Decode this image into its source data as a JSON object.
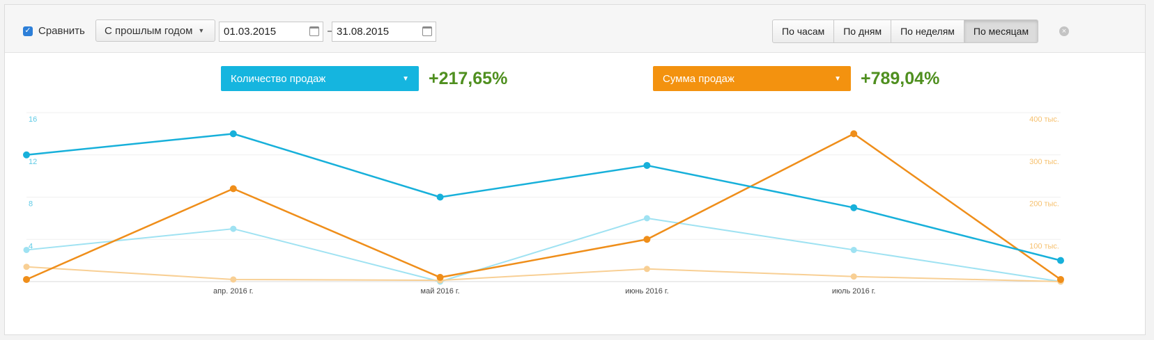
{
  "toolbar": {
    "compare_label": "Сравнить",
    "compare_checked": true,
    "period_select": "С прошлым годом",
    "date_from": "01.03.2015",
    "date_separator": "–",
    "date_to": "31.08.2015",
    "granularity": [
      "По часам",
      "По дням",
      "По неделям",
      "По месяцам"
    ],
    "active_granularity": "По месяцам"
  },
  "metrics": [
    {
      "label": "Количество продаж",
      "change": "+217,65%",
      "color": "#15b5df"
    },
    {
      "label": "Сумма продаж",
      "change": "+789,04%",
      "color": "#f3920f"
    }
  ],
  "chart_data": {
    "type": "line",
    "x": [
      "",
      "апр. 2016 г.",
      "май 2016 г.",
      "июнь 2016 г.",
      "июль 2016 г.",
      ""
    ],
    "x_tick_labels": [
      "апр. 2016 г.",
      "май 2016 г.",
      "июнь 2016 г.",
      "июль 2016 г."
    ],
    "left_axis": {
      "ticks": [
        "16",
        "12",
        "8",
        "4"
      ],
      "ylim": [
        0,
        16
      ],
      "color": "#5fcbe6"
    },
    "right_axis": {
      "ticks": [
        "400 тыс.",
        "300 тыс.",
        "200 тыс.",
        "100 тыс."
      ],
      "ylim": [
        0,
        400000
      ],
      "color": "#f6c06e"
    },
    "grid": true,
    "series": [
      {
        "axis": "left",
        "color": "#17b0da",
        "values": [
          12,
          14,
          8,
          11,
          7,
          2
        ]
      },
      {
        "axis": "left",
        "color": "#9fe2f2",
        "values": [
          3,
          5,
          0,
          6,
          3,
          0
        ]
      },
      {
        "axis": "right",
        "color": "#ef8e1a",
        "values": [
          5000,
          220000,
          10000,
          100000,
          350000,
          5000
        ]
      },
      {
        "axis": "right",
        "color": "#f8cf94",
        "values": [
          35000,
          5000,
          3000,
          30000,
          12000,
          0
        ]
      }
    ]
  }
}
